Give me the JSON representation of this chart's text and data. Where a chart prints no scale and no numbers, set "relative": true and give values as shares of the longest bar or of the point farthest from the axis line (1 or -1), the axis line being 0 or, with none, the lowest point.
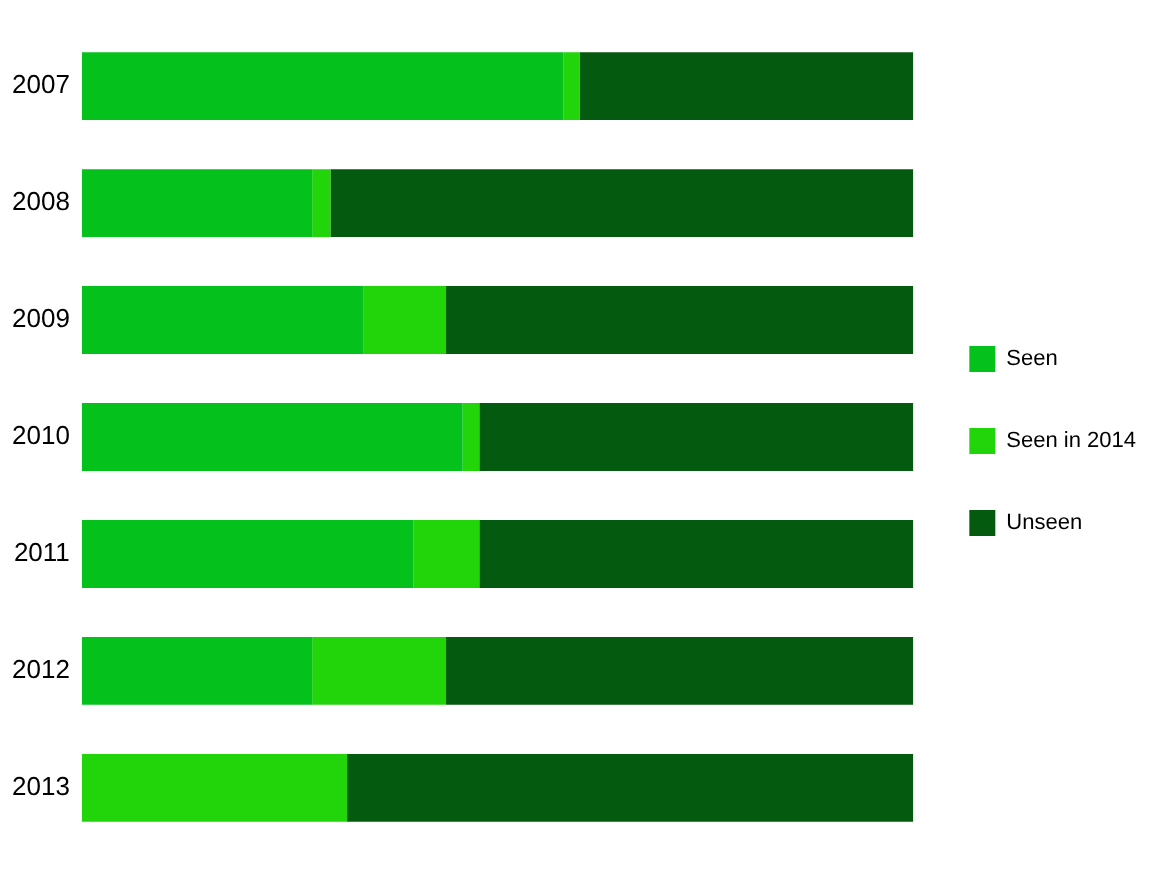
{
  "chart_data": {
    "type": "bar",
    "orientation": "horizontal",
    "stacked": true,
    "relative": true,
    "legend": "right",
    "grid": false,
    "categories": [
      "2007",
      "2008",
      "2009",
      "2010",
      "2011",
      "2012",
      "2013"
    ],
    "series": [
      {
        "name": "Seen",
        "color": "#05c11b",
        "values": [
          0.579,
          0.277,
          0.339,
          0.458,
          0.399,
          0.277,
          0
        ]
      },
      {
        "name": "Seen in 2014",
        "color": "#22d50a",
        "values": [
          0.02,
          0.022,
          0.099,
          0.02,
          0.079,
          0.161,
          0.319
        ]
      },
      {
        "name": "Unseen",
        "color": "#045a0e",
        "values": [
          0.401,
          0.701,
          0.562,
          0.522,
          0.522,
          0.562,
          0.681
        ]
      }
    ]
  }
}
